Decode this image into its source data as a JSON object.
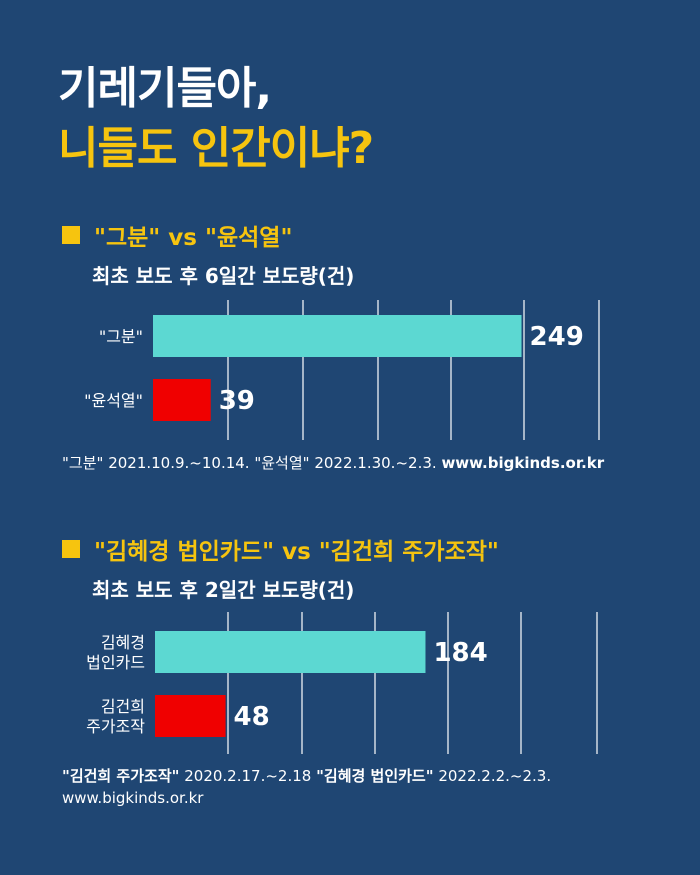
{
  "title": {
    "line1": "기레기들아,",
    "line2": "니들도 인간이냐?"
  },
  "colors": {
    "background": "#1f4673",
    "accent_yellow": "#f6c40f",
    "bar_cyan": "#5cd8d2",
    "bar_red": "#f00000"
  },
  "chart_data": [
    {
      "type": "bar",
      "orientation": "horizontal",
      "title": "\"그분\" vs \"윤석열\"",
      "subtitle": "최초 보도 후 6일간 보도량(건)",
      "categories": [
        "\"그분\"",
        "\"윤석열\""
      ],
      "values": [
        249,
        39
      ],
      "bar_colors": [
        "#5cd8d2",
        "#f00000"
      ],
      "xlim": [
        0,
        300
      ],
      "grid": true,
      "source": {
        "a_label": "\"그분\"",
        "a_dates": "2021.10.9.~10.14.",
        "b_label": "\"윤석열\"",
        "b_dates": "2022.1.30.~2.3.",
        "site": "www.bigkinds.or.kr"
      }
    },
    {
      "type": "bar",
      "orientation": "horizontal",
      "title": "\"김혜경 법인카드\" vs \"김건희 주가조작\"",
      "subtitle": "최초 보도 후 2일간 보도량(건)",
      "categories": [
        "김혜경\n법인카드",
        "김건희\n주가조작"
      ],
      "values": [
        184,
        48
      ],
      "bar_colors": [
        "#5cd8d2",
        "#f00000"
      ],
      "xlim": [
        0,
        250
      ],
      "grid": true,
      "source": {
        "a_label": "\"김건희 주가조작\"",
        "a_dates": "2020.2.17.~2.18",
        "b_label": "\"김혜경 법인카드\"",
        "b_dates": "2022.2.2.~2.3.",
        "site": "www.bigkinds.or.kr"
      }
    }
  ]
}
